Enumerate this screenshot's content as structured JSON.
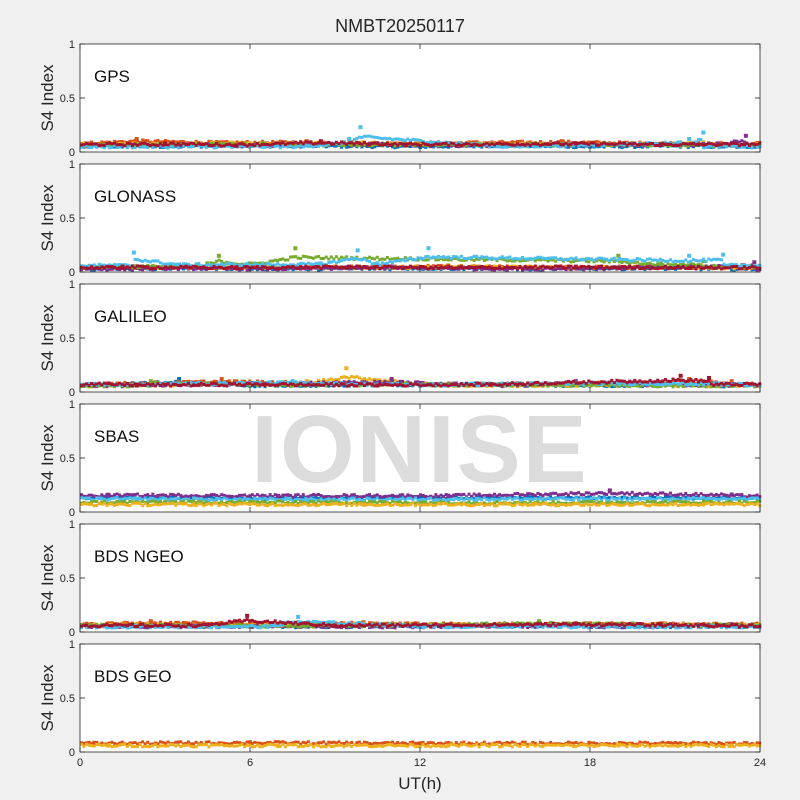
{
  "title": "NMBT20250117",
  "watermark": "IONISE",
  "xlabel": "UT(h)",
  "ylabel": "S4 Index",
  "xticks": [
    "0",
    "6",
    "12",
    "18",
    "24"
  ],
  "yticks": [
    "0",
    "0.5",
    "1"
  ],
  "chart_data": [
    {
      "type": "scatter",
      "panel_label": "GPS",
      "x_range": [
        0,
        24
      ],
      "ylim": [
        0,
        1
      ],
      "series": [
        {
          "color": "#0072BD",
          "baseline": 0.05,
          "points": [
            [
              0.5,
              0.06
            ],
            [
              3,
              0.05
            ],
            [
              6,
              0.07
            ],
            [
              9,
              0.06
            ],
            [
              12,
              0.05
            ],
            [
              15,
              0.07
            ],
            [
              18,
              0.05
            ],
            [
              21,
              0.06
            ],
            [
              23.5,
              0.05
            ]
          ]
        },
        {
          "color": "#D95319",
          "baseline": 0.08,
          "points": [
            [
              0.2,
              0.08
            ],
            [
              2,
              0.12
            ],
            [
              5,
              0.09
            ],
            [
              8,
              0.1
            ],
            [
              11,
              0.08
            ],
            [
              14,
              0.09
            ],
            [
              17,
              0.1
            ],
            [
              20,
              0.08
            ],
            [
              23.8,
              0.07
            ]
          ]
        },
        {
          "color": "#EDB120",
          "baseline": 0.07,
          "points": [
            [
              1,
              0.07
            ],
            [
              4,
              0.08
            ],
            [
              10,
              0.09
            ],
            [
              13,
              0.07
            ],
            [
              16,
              0.08
            ],
            [
              19,
              0.07
            ],
            [
              22,
              0.09
            ]
          ]
        },
        {
          "color": "#7E2F8E",
          "baseline": 0.06,
          "points": [
            [
              1.5,
              0.06
            ],
            [
              4.5,
              0.07
            ],
            [
              7.5,
              0.06
            ],
            [
              10.5,
              0.08
            ],
            [
              13.5,
              0.06
            ],
            [
              16.5,
              0.07
            ],
            [
              22.5,
              0.08
            ],
            [
              23.5,
              0.15
            ]
          ]
        },
        {
          "color": "#77AC30",
          "baseline": 0.06,
          "points": [
            [
              2,
              0.07
            ],
            [
              6.5,
              0.08
            ],
            [
              12.5,
              0.07
            ],
            [
              18.5,
              0.08
            ],
            [
              21,
              0.07
            ]
          ]
        },
        {
          "color": "#4DBEEE",
          "baseline": 0.05,
          "points": [
            [
              8,
              0.06
            ],
            [
              9.5,
              0.12
            ],
            [
              9.9,
              0.23
            ],
            [
              15,
              0.05
            ],
            [
              21.5,
              0.12
            ],
            [
              22,
              0.18
            ]
          ]
        },
        {
          "color": "#A2142F",
          "baseline": 0.07,
          "points": [
            [
              3,
              0.08
            ],
            [
              5.5,
              0.06
            ],
            [
              8.5,
              0.1
            ],
            [
              11.5,
              0.07
            ],
            [
              17.5,
              0.08
            ],
            [
              20.5,
              0.07
            ]
          ]
        }
      ]
    },
    {
      "type": "scatter",
      "panel_label": "GLONASS",
      "x_range": [
        0,
        24
      ],
      "ylim": [
        0,
        1
      ],
      "series": [
        {
          "color": "#0072BD",
          "baseline": 0.03,
          "points": [
            [
              0.5,
              0.03
            ],
            [
              4,
              0.04
            ],
            [
              8,
              0.03
            ],
            [
              12,
              0.04
            ],
            [
              16,
              0.03
            ],
            [
              20,
              0.04
            ],
            [
              23.5,
              0.03
            ]
          ]
        },
        {
          "color": "#D95319",
          "baseline": 0.04,
          "points": [
            [
              1,
              0.05
            ],
            [
              5,
              0.04
            ],
            [
              9,
              0.05
            ],
            [
              13,
              0.06
            ],
            [
              17,
              0.04
            ],
            [
              21,
              0.05
            ]
          ]
        },
        {
          "color": "#EDB120",
          "baseline": 0.04,
          "points": [
            [
              2,
              0.04
            ],
            [
              6,
              0.05
            ],
            [
              10,
              0.04
            ],
            [
              14,
              0.05
            ],
            [
              18,
              0.04
            ],
            [
              22,
              0.05
            ]
          ]
        },
        {
          "color": "#7E2F8E",
          "baseline": 0.03,
          "points": [
            [
              3,
              0.04
            ],
            [
              7,
              0.03
            ],
            [
              11,
              0.05
            ],
            [
              15,
              0.03
            ],
            [
              19,
              0.04
            ],
            [
              23.8,
              0.09
            ]
          ]
        },
        {
          "color": "#77AC30",
          "baseline": 0.05,
          "points": [
            [
              4.5,
              0.08
            ],
            [
              4.9,
              0.15
            ],
            [
              6,
              0.08
            ],
            [
              7.6,
              0.22
            ],
            [
              19,
              0.15
            ],
            [
              20.5,
              0.08
            ],
            [
              22,
              0.1
            ]
          ]
        },
        {
          "color": "#4DBEEE",
          "baseline": 0.06,
          "points": [
            [
              1.9,
              0.18
            ],
            [
              3.5,
              0.07
            ],
            [
              8.5,
              0.08
            ],
            [
              9.8,
              0.2
            ],
            [
              10.5,
              0.08
            ],
            [
              12.3,
              0.22
            ],
            [
              21.5,
              0.15
            ],
            [
              22.7,
              0.16
            ]
          ]
        },
        {
          "color": "#A2142F",
          "baseline": 0.04,
          "points": [
            [
              1.5,
              0.05
            ],
            [
              5.5,
              0.04
            ],
            [
              9.5,
              0.05
            ],
            [
              13.5,
              0.04
            ],
            [
              17.5,
              0.05
            ],
            [
              21.5,
              0.04
            ]
          ]
        }
      ]
    },
    {
      "type": "scatter",
      "panel_label": "GALILEO",
      "x_range": [
        0,
        24
      ],
      "ylim": [
        0,
        1
      ],
      "series": [
        {
          "color": "#0072BD",
          "baseline": 0.06,
          "points": [
            [
              0.5,
              0.07
            ],
            [
              3.5,
              0.12
            ],
            [
              6,
              0.06
            ],
            [
              10,
              0.07
            ],
            [
              14,
              0.08
            ],
            [
              18,
              0.06
            ],
            [
              22,
              0.07
            ]
          ]
        },
        {
          "color": "#D95319",
          "baseline": 0.07,
          "points": [
            [
              1,
              0.08
            ],
            [
              5,
              0.12
            ],
            [
              9,
              0.09
            ],
            [
              13,
              0.07
            ],
            [
              17,
              0.08
            ],
            [
              21.5,
              0.12
            ],
            [
              23,
              0.1
            ]
          ]
        },
        {
          "color": "#EDB120",
          "baseline": 0.06,
          "points": [
            [
              2,
              0.07
            ],
            [
              8,
              0.1
            ],
            [
              9.4,
              0.22
            ],
            [
              12.5,
              0.07
            ],
            [
              16,
              0.06
            ],
            [
              20,
              0.08
            ]
          ]
        },
        {
          "color": "#7E2F8E",
          "baseline": 0.06,
          "points": [
            [
              1.5,
              0.06
            ],
            [
              4,
              0.08
            ],
            [
              11,
              0.12
            ],
            [
              15,
              0.06
            ],
            [
              17.5,
              0.1
            ],
            [
              19.5,
              0.08
            ],
            [
              23.5,
              0.07
            ]
          ]
        },
        {
          "color": "#77AC30",
          "baseline": 0.06,
          "points": [
            [
              2.5,
              0.1
            ],
            [
              7,
              0.07
            ],
            [
              11.5,
              0.08
            ],
            [
              16.5,
              0.07
            ],
            [
              20.5,
              0.06
            ]
          ]
        },
        {
          "color": "#4DBEEE",
          "baseline": 0.07,
          "points": [
            [
              3,
              0.08
            ],
            [
              7.5,
              0.1
            ],
            [
              12,
              0.06
            ],
            [
              15.5,
              0.08
            ],
            [
              19,
              0.09
            ],
            [
              22.5,
              0.08
            ]
          ]
        },
        {
          "color": "#A2142F",
          "baseline": 0.07,
          "points": [
            [
              2,
              0.06
            ],
            [
              6.5,
              0.07
            ],
            [
              10.5,
              0.06
            ],
            [
              14.5,
              0.07
            ],
            [
              21.2,
              0.15
            ],
            [
              22.2,
              0.13
            ]
          ]
        }
      ]
    },
    {
      "type": "scatter",
      "panel_label": "SBAS",
      "x_range": [
        0,
        24
      ],
      "ylim": [
        0,
        1
      ],
      "series": [
        {
          "color": "#0072BD",
          "baseline": 0.13,
          "points": [
            [
              0.5,
              0.14
            ],
            [
              6,
              0.13
            ],
            [
              12,
              0.14
            ],
            [
              18,
              0.13
            ],
            [
              23.5,
              0.13
            ]
          ]
        },
        {
          "color": "#7E2F8E",
          "baseline": 0.15,
          "points": [
            [
              1,
              0.16
            ],
            [
              7,
              0.15
            ],
            [
              13,
              0.15
            ],
            [
              18.7,
              0.2
            ],
            [
              23,
              0.16
            ]
          ]
        },
        {
          "color": "#4DBEEE",
          "baseline": 0.12,
          "points": [
            [
              2,
              0.12
            ],
            [
              8,
              0.11
            ],
            [
              14,
              0.12
            ],
            [
              20,
              0.12
            ]
          ]
        },
        {
          "color": "#77AC30",
          "baseline": 0.09,
          "points": [
            [
              3,
              0.09
            ],
            [
              9,
              0.09
            ],
            [
              15,
              0.08
            ],
            [
              21,
              0.09
            ]
          ]
        },
        {
          "color": "#EDB120",
          "baseline": 0.07,
          "points": [
            [
              4,
              0.07
            ],
            [
              10,
              0.07
            ],
            [
              16,
              0.07
            ],
            [
              22,
              0.07
            ]
          ]
        }
      ]
    },
    {
      "type": "scatter",
      "panel_label": "BDS NGEO",
      "x_range": [
        0,
        24
      ],
      "ylim": [
        0,
        1
      ],
      "series": [
        {
          "color": "#0072BD",
          "baseline": 0.05,
          "points": [
            [
              0.5,
              0.06
            ],
            [
              4,
              0.08
            ],
            [
              8,
              0.05
            ],
            [
              12,
              0.06
            ],
            [
              16,
              0.07
            ],
            [
              20,
              0.05
            ],
            [
              23.5,
              0.06
            ]
          ]
        },
        {
          "color": "#D95319",
          "baseline": 0.07,
          "points": [
            [
              1,
              0.08
            ],
            [
              2.5,
              0.1
            ],
            [
              6,
              0.08
            ],
            [
              10,
              0.09
            ],
            [
              14,
              0.07
            ],
            [
              18,
              0.08
            ],
            [
              22,
              0.07
            ]
          ]
        },
        {
          "color": "#EDB120",
          "baseline": 0.06,
          "points": [
            [
              1.5,
              0.07
            ],
            [
              5.5,
              0.06
            ],
            [
              9.5,
              0.08
            ],
            [
              13.5,
              0.07
            ],
            [
              17.5,
              0.06
            ],
            [
              21.5,
              0.07
            ]
          ]
        },
        {
          "color": "#7E2F8E",
          "baseline": 0.05,
          "points": [
            [
              2,
              0.05
            ],
            [
              7,
              0.06
            ],
            [
              11,
              0.05
            ],
            [
              15,
              0.06
            ],
            [
              19,
              0.05
            ],
            [
              23,
              0.07
            ]
          ]
        },
        {
          "color": "#77AC30",
          "baseline": 0.06,
          "points": [
            [
              3,
              0.06
            ],
            [
              6.5,
              0.05
            ],
            [
              13,
              0.07
            ],
            [
              16.2,
              0.1
            ],
            [
              19.5,
              0.08
            ]
          ]
        },
        {
          "color": "#4DBEEE",
          "baseline": 0.05,
          "points": [
            [
              6.8,
              0.07
            ],
            [
              7.7,
              0.14
            ],
            [
              12.5,
              0.05
            ],
            [
              16.8,
              0.06
            ]
          ]
        },
        {
          "color": "#A2142F",
          "baseline": 0.06,
          "points": [
            [
              4.5,
              0.07
            ],
            [
              5.9,
              0.15
            ],
            [
              9,
              0.06
            ],
            [
              17.5,
              0.08
            ],
            [
              20.5,
              0.07
            ],
            [
              22.5,
              0.06
            ]
          ]
        }
      ]
    },
    {
      "type": "scatter",
      "panel_label": "BDS GEO",
      "x_range": [
        0,
        24
      ],
      "ylim": [
        0,
        1
      ],
      "series": [
        {
          "color": "#D95319",
          "baseline": 0.08,
          "points": [
            [
              0.5,
              0.08
            ],
            [
              6,
              0.09
            ],
            [
              12,
              0.08
            ],
            [
              18,
              0.08
            ],
            [
              23.5,
              0.08
            ]
          ]
        },
        {
          "color": "#EDB120",
          "baseline": 0.06,
          "points": [
            [
              1,
              0.06
            ],
            [
              7,
              0.06
            ],
            [
              13,
              0.06
            ],
            [
              19,
              0.06
            ],
            [
              23,
              0.06
            ]
          ]
        }
      ]
    }
  ]
}
